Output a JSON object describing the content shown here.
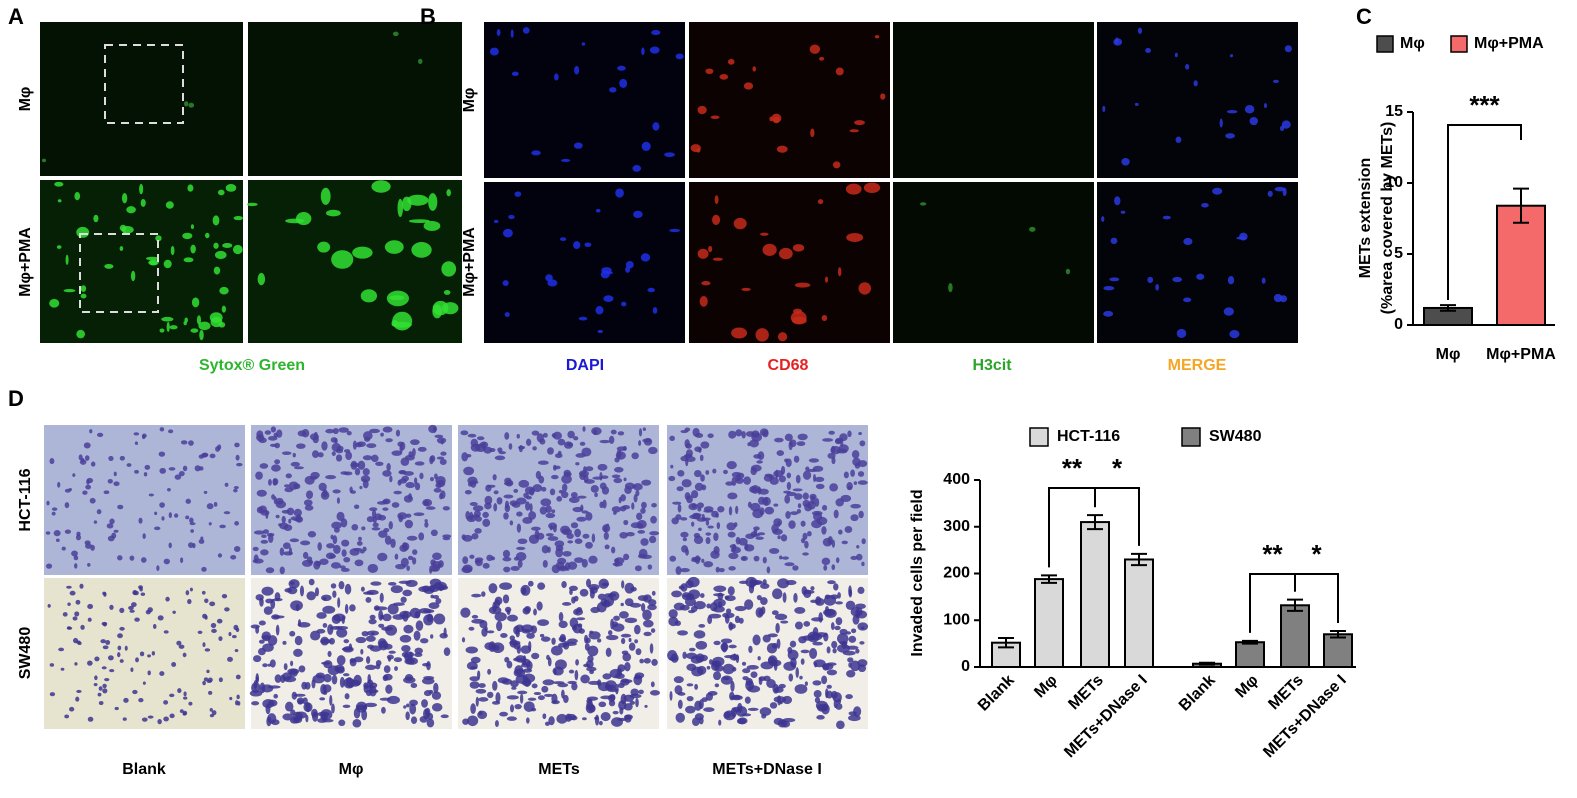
{
  "panel_labels": [
    "A",
    "B",
    "C",
    "D"
  ],
  "panel_a": {
    "row_labels": [
      "Mφ",
      "Mφ+PMA"
    ],
    "caption": "Sytox® Green"
  },
  "panel_b": {
    "row_labels": [
      "Mφ",
      "Mφ+PMA"
    ],
    "channels": [
      "DAPI",
      "CD68",
      "H3cit",
      "MERGE"
    ]
  },
  "panel_d": {
    "row_labels": [
      "HCT-116",
      "SW480"
    ],
    "column_labels": [
      "Blank",
      "Mφ",
      "METs",
      "METs+DNase I"
    ]
  },
  "chart_data": [
    {
      "type": "bar",
      "ylabel": [
        "METs extension",
        "(%area covered by METs)"
      ],
      "categories": [
        "Mφ",
        "Mφ+PMA"
      ],
      "values": [
        1.2,
        8.4
      ],
      "errors": [
        0.2,
        1.2
      ],
      "colors": [
        "#4d4d4d",
        "#f46a6a"
      ],
      "significance": "***",
      "ylim": [
        0,
        15
      ],
      "yticks": [
        0,
        5,
        10,
        15
      ]
    },
    {
      "type": "bar",
      "ylabel": [
        "Invaded cells per field"
      ],
      "categories": [
        "Blank",
        "Mφ",
        "METs",
        "METs+DNase I"
      ],
      "series": [
        {
          "name": "HCT-116",
          "color": "#d9d9d9",
          "values": [
            52,
            188,
            310,
            230
          ],
          "errors": [
            10,
            8,
            15,
            12
          ],
          "significance": [
            "**",
            "*"
          ]
        },
        {
          "name": "SW480",
          "color": "#808080",
          "values": [
            7,
            53,
            132,
            70
          ],
          "errors": [
            2,
            3,
            12,
            7
          ],
          "significance": [
            "**",
            "*"
          ]
        }
      ],
      "ylim": [
        0,
        400
      ],
      "yticks": [
        0,
        100,
        200,
        300,
        400
      ]
    }
  ]
}
